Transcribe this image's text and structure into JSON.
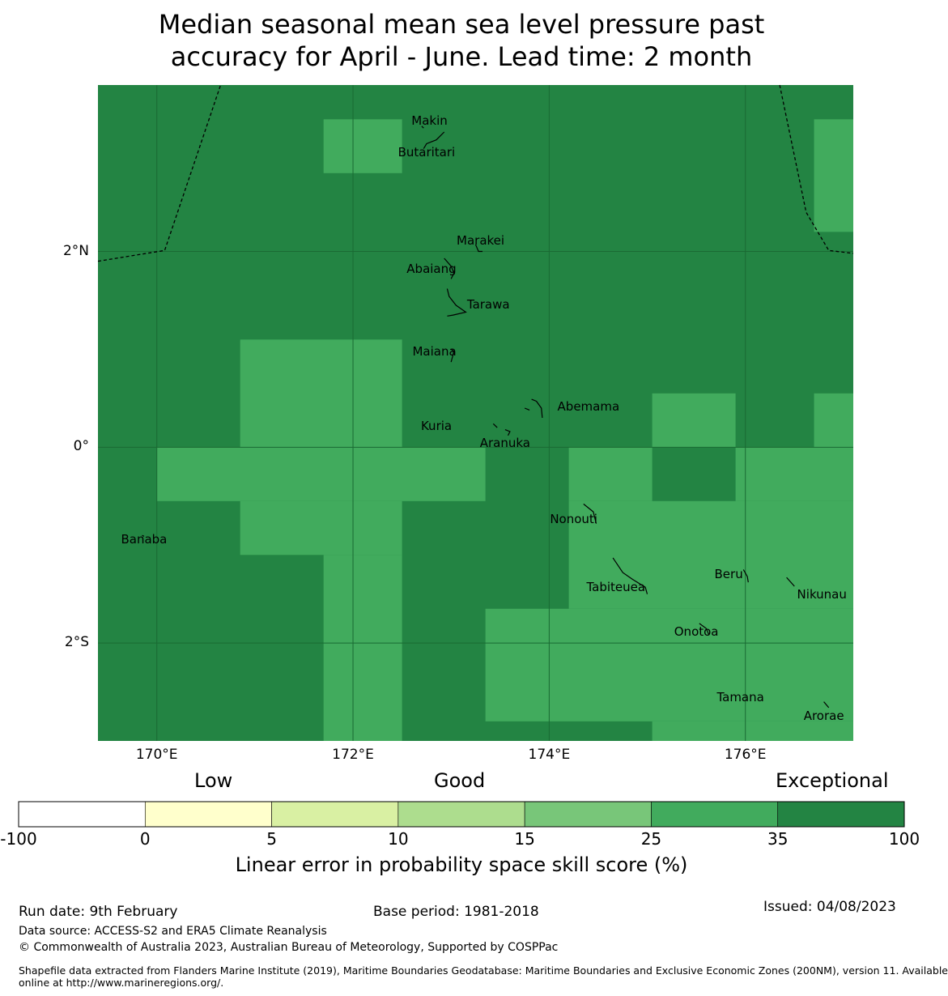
{
  "title": {
    "line1": "Median seasonal mean sea level pressure past",
    "line2": "accuracy for April - June. Lead time: 2 month"
  },
  "map": {
    "lon_range": [
      169.4,
      177.1
    ],
    "lat_range": [
      -3.0,
      3.7
    ],
    "x_ticks": [
      {
        "lon": 170,
        "label": "170°E"
      },
      {
        "lon": 172,
        "label": "172°E"
      },
      {
        "lon": 174,
        "label": "174°E"
      },
      {
        "lon": 176,
        "label": "176°E"
      }
    ],
    "y_ticks": [
      {
        "lat": 2,
        "label": "2°N"
      },
      {
        "lat": 0,
        "label": "0°"
      },
      {
        "lat": -2,
        "label": "2°S"
      }
    ],
    "skill_cells_35_to_25": [
      {
        "lon": [
          171.7,
          172.5
        ],
        "lat": [
          2.8,
          3.35
        ]
      },
      {
        "lon": [
          176.7,
          177.1
        ],
        "lat": [
          2.2,
          3.35
        ]
      },
      {
        "lon": [
          170.85,
          172.5
        ],
        "lat": [
          0.0,
          1.1
        ]
      },
      {
        "lon": [
          175.05,
          175.9
        ],
        "lat": [
          0.0,
          0.55
        ]
      },
      {
        "lon": [
          176.7,
          177.1
        ],
        "lat": [
          0.0,
          0.55
        ]
      },
      {
        "lon": [
          170.0,
          173.35
        ],
        "lat": [
          -0.55,
          0.0
        ]
      },
      {
        "lon": [
          170.85,
          172.5
        ],
        "lat": [
          -1.1,
          -0.55
        ]
      },
      {
        "lon": [
          171.7,
          172.5
        ],
        "lat": [
          -3.0,
          -1.1
        ]
      },
      {
        "lon": [
          174.2,
          175.05
        ],
        "lat": [
          -0.55,
          0.0
        ]
      },
      {
        "lon": [
          175.9,
          177.1
        ],
        "lat": [
          -0.55,
          0.0
        ]
      },
      {
        "lon": [
          174.2,
          177.1
        ],
        "lat": [
          -1.65,
          -0.55
        ]
      },
      {
        "lon": [
          173.35,
          177.1
        ],
        "lat": [
          -2.8,
          -1.65
        ]
      },
      {
        "lon": [
          175.05,
          177.1
        ],
        "lat": [
          -3.0,
          -2.8
        ]
      }
    ],
    "colors": {
      "exceptional": "#238443",
      "good_high": "#41ab5d",
      "grid": "#1a6a33",
      "boundary": "#000000"
    },
    "islands": [
      {
        "name": "Makin",
        "lon": 172.78,
        "lat": 3.34
      },
      {
        "name": "Butaritari",
        "lon": 172.75,
        "lat": 3.01
      },
      {
        "name": "Marakei",
        "lon": 173.3,
        "lat": 2.11
      },
      {
        "name": "Abaiang",
        "lon": 172.8,
        "lat": 1.82
      },
      {
        "name": "Tarawa",
        "lon": 173.38,
        "lat": 1.46
      },
      {
        "name": "Maiana",
        "lon": 172.83,
        "lat": 0.98
      },
      {
        "name": "Abemama",
        "lon": 174.4,
        "lat": 0.42
      },
      {
        "name": "Kuria",
        "lon": 172.85,
        "lat": 0.22
      },
      {
        "name": "Aranuka",
        "lon": 173.55,
        "lat": 0.04
      },
      {
        "name": "Nonouti",
        "lon": 174.25,
        "lat": -0.73
      },
      {
        "name": "Banaba",
        "lon": 169.87,
        "lat": -0.94
      },
      {
        "name": "Tabiteuea",
        "lon": 174.68,
        "lat": -1.43
      },
      {
        "name": "Beru",
        "lon": 175.83,
        "lat": -1.3
      },
      {
        "name": "Nikunau",
        "lon": 176.78,
        "lat": -1.5
      },
      {
        "name": "Onotoa",
        "lon": 175.5,
        "lat": -1.88
      },
      {
        "name": "Tamana",
        "lon": 175.95,
        "lat": -2.55
      },
      {
        "name": "Arorae",
        "lon": 176.8,
        "lat": -2.74
      }
    ],
    "eez_west": [
      [
        169.4,
        1.9
      ],
      [
        170.08,
        2.01
      ],
      [
        170.65,
        3.7
      ]
    ],
    "eez_east": [
      [
        176.35,
        3.7
      ],
      [
        176.62,
        2.4
      ],
      [
        176.85,
        2.01
      ],
      [
        177.1,
        1.98
      ]
    ],
    "coastlines": [
      [
        [
          172.7,
          3.28
        ],
        [
          172.72,
          3.26
        ]
      ],
      [
        [
          172.93,
          3.22
        ],
        [
          172.85,
          3.14
        ],
        [
          172.75,
          3.1
        ],
        [
          172.72,
          3.05
        ]
      ],
      [
        [
          173.25,
          2.07
        ],
        [
          173.28,
          2.0
        ],
        [
          173.32,
          2.0
        ]
      ],
      [
        [
          172.93,
          1.93
        ],
        [
          173.0,
          1.85
        ],
        [
          173.03,
          1.78
        ],
        [
          173.0,
          1.72
        ]
      ],
      [
        [
          172.96,
          1.62
        ],
        [
          172.98,
          1.54
        ],
        [
          173.05,
          1.45
        ],
        [
          173.15,
          1.38
        ],
        [
          173.02,
          1.35
        ],
        [
          172.96,
          1.34
        ]
      ],
      [
        [
          173.0,
          1.0
        ],
        [
          173.03,
          0.98
        ],
        [
          173.0,
          0.87
        ]
      ],
      [
        [
          173.82,
          0.49
        ],
        [
          173.87,
          0.47
        ],
        [
          173.92,
          0.4
        ],
        [
          173.93,
          0.3
        ]
      ],
      [
        [
          173.8,
          0.38
        ],
        [
          173.75,
          0.4
        ]
      ],
      [
        [
          173.43,
          0.24
        ],
        [
          173.47,
          0.2
        ]
      ],
      [
        [
          173.55,
          0.18
        ],
        [
          173.6,
          0.16
        ],
        [
          173.58,
          0.12
        ]
      ],
      [
        [
          174.35,
          -0.58
        ],
        [
          174.45,
          -0.66
        ],
        [
          174.48,
          -0.78
        ]
      ],
      [
        [
          169.85,
          -0.9
        ],
        [
          169.87,
          -0.91
        ]
      ],
      [
        [
          174.65,
          -1.13
        ],
        [
          174.75,
          -1.28
        ],
        [
          174.85,
          -1.35
        ],
        [
          174.98,
          -1.43
        ],
        [
          175.0,
          -1.5
        ]
      ],
      [
        [
          175.98,
          -1.25
        ],
        [
          176.02,
          -1.32
        ],
        [
          176.03,
          -1.38
        ]
      ],
      [
        [
          176.42,
          -1.33
        ],
        [
          176.5,
          -1.42
        ]
      ],
      [
        [
          175.53,
          -1.8
        ],
        [
          175.6,
          -1.85
        ],
        [
          175.63,
          -1.92
        ]
      ],
      [
        [
          176.8,
          -2.6
        ],
        [
          176.85,
          -2.66
        ]
      ]
    ]
  },
  "legend": {
    "categories": {
      "low": "Low",
      "good": "Good",
      "exceptional": "Exceptional"
    },
    "bins": [
      {
        "from": -100,
        "to": 0,
        "color": "#ffffff"
      },
      {
        "from": 0,
        "to": 5,
        "color": "#ffffcc"
      },
      {
        "from": 5,
        "to": 10,
        "color": "#d9f0a3"
      },
      {
        "from": 10,
        "to": 15,
        "color": "#addd8e"
      },
      {
        "from": 15,
        "to": 25,
        "color": "#78c679"
      },
      {
        "from": 25,
        "to": 35,
        "color": "#41ab5d"
      },
      {
        "from": 35,
        "to": 100,
        "color": "#238443"
      }
    ],
    "ticks": [
      "-100",
      "0",
      "5",
      "10",
      "15",
      "25",
      "35",
      "100"
    ],
    "label": "Linear error in probability space skill score (%)"
  },
  "footer": {
    "run_date": "Run date: 9th February",
    "base_period": "Base period: 1981-2018",
    "issued": "Issued: 04/08/2023",
    "data_source": "Data source: ACCESS-S2 and ERA5 Climate Reanalysis",
    "copyright": "© Commonwealth of Australia 2023, Australian Bureau of Meteorology, Supported by COSPPac",
    "shapefile_line1": "Shapefile data extracted from Flanders Marine Institute (2019), Maritime Boundaries Geodatabase: Maritime Boundaries and Exclusive Economic Zones (200NM), version 11. Available",
    "shapefile_line2": "online at http://www.marineregions.org/."
  }
}
